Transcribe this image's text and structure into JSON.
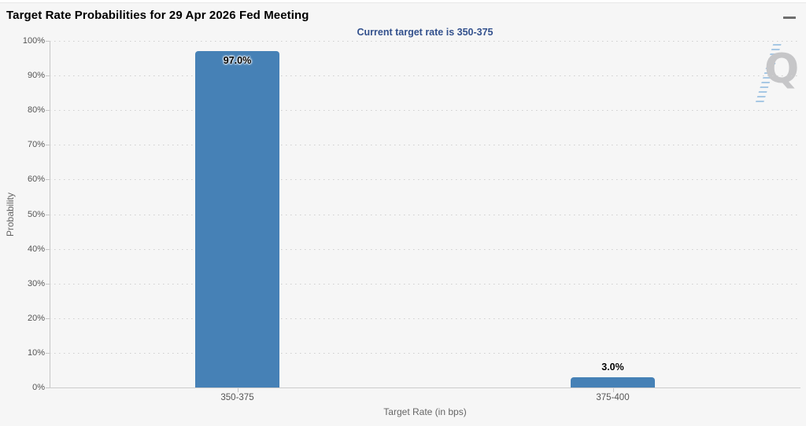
{
  "header": {
    "title": "Target Rate Probabilities for 29 Apr 2026 Fed Meeting",
    "subtitle": "Current target rate is 350-375"
  },
  "menu": {
    "icon": "hamburger-menu-icon"
  },
  "watermark": {
    "letter": "Q"
  },
  "chart_data": {
    "type": "bar",
    "title": "Target Rate Probabilities for 29 Apr 2026 Fed Meeting",
    "subtitle": "Current target rate is 350-375",
    "categories": [
      "350-375",
      "375-400"
    ],
    "values": [
      97.0,
      3.0
    ],
    "value_labels": [
      "97.0%",
      "3.0%"
    ],
    "xlabel": "Target Rate (in bps)",
    "ylabel": "Probability",
    "ylim": [
      0,
      100
    ],
    "ytick_step": 10,
    "ytick_suffix": "%",
    "grid": "dotted-horizontal",
    "legend": "none",
    "colors": {
      "bar": "#4681b6",
      "subtitle": "#33518d",
      "title": "#000000",
      "axis_labels": "#555555",
      "axis_titles": "#666666",
      "grid": "#cfcfcf",
      "axis_line": "#c6c6c6",
      "background": "#f6f6f6"
    }
  }
}
